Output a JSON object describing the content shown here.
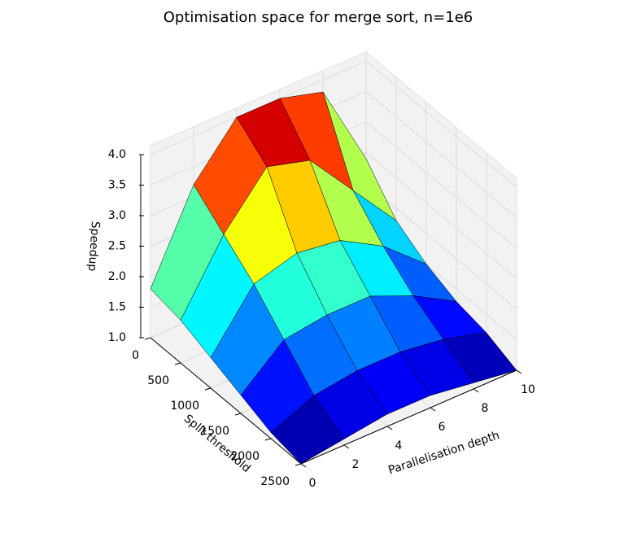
{
  "chart_data": {
    "type": "surface",
    "title": "Optimisation space for merge sort, n=1e6",
    "xlabel": "Parallelisation depth",
    "ylabel": "Split threshold",
    "zlabel": "Speedup",
    "x": [
      0,
      2,
      4,
      6,
      8,
      10
    ],
    "y": [
      0,
      500,
      1000,
      1500,
      2000,
      2500
    ],
    "z": [
      [
        1.8,
        3.2,
        4.0,
        4.0,
        3.8,
        2.4
      ],
      [
        1.7,
        2.8,
        3.6,
        3.4,
        2.6,
        1.8
      ],
      [
        1.5,
        2.4,
        2.6,
        2.5,
        2.1,
        1.5
      ],
      [
        1.3,
        1.9,
        2.0,
        2.0,
        1.7,
        1.3
      ],
      [
        1.1,
        1.4,
        1.5,
        1.5,
        1.4,
        1.2
      ],
      [
        1.0,
        1.1,
        1.2,
        1.2,
        1.1,
        1.0
      ]
    ],
    "colormap": "jet",
    "xlim": [
      0,
      10
    ],
    "xticks": [
      0,
      2,
      4,
      6,
      8,
      10
    ],
    "ylim": [
      0,
      2500
    ],
    "yticks": [
      0,
      500,
      1000,
      1500,
      2000,
      2500
    ],
    "zlim": [
      1,
      4
    ],
    "zticks": [
      {
        "value": 1,
        "label": "1.0"
      },
      {
        "value": 1.5,
        "label": "1.5"
      },
      {
        "value": 2,
        "label": "2.0"
      },
      {
        "value": 2.5,
        "label": "2.5"
      },
      {
        "value": 3,
        "label": "3.0"
      },
      {
        "value": 3.5,
        "label": "3.5"
      },
      {
        "value": 4,
        "label": "4.0"
      }
    ],
    "grid": true
  }
}
